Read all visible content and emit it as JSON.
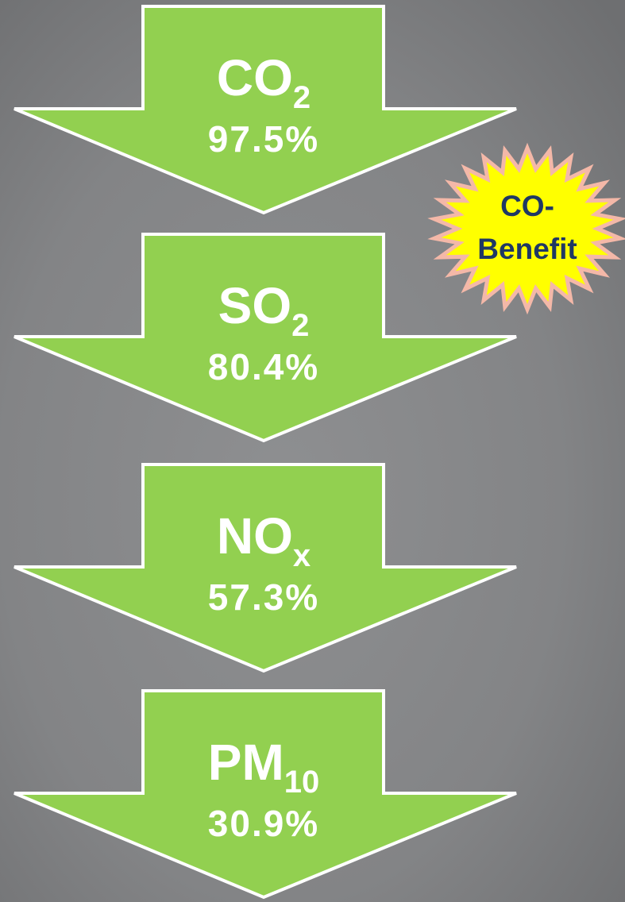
{
  "arrows": [
    {
      "formula": "CO",
      "subscript": "2",
      "value": "97.5%"
    },
    {
      "formula": "SO",
      "subscript": "2",
      "value": "80.4%"
    },
    {
      "formula": "NO",
      "subscript": "x",
      "value": "57.3%"
    },
    {
      "formula": "PM",
      "subscript": "10",
      "value": "30.9%"
    }
  ],
  "badge": {
    "lines": [
      "CO-",
      "Benefit"
    ]
  }
}
